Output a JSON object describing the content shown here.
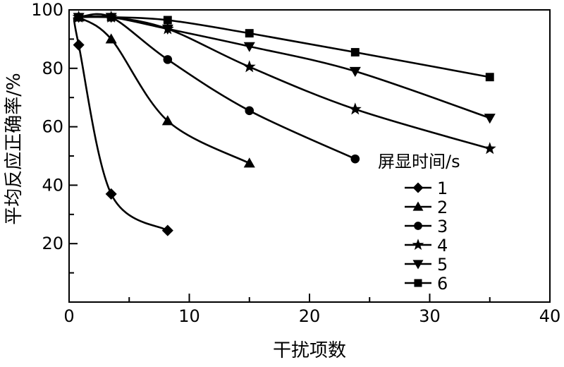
{
  "chart_data": {
    "type": "line",
    "title": "",
    "xlabel": "干扰项数",
    "ylabel": "平均反应正确率/%",
    "xlim": [
      0,
      40
    ],
    "ylim": [
      0,
      100
    ],
    "x_ticks": [
      0,
      10,
      20,
      30,
      40
    ],
    "y_ticks": [
      20,
      40,
      60,
      80,
      100
    ],
    "grid": false,
    "legend": {
      "title": "屏显时间/s",
      "placement": "right-middle"
    },
    "series": [
      {
        "name": "1",
        "marker": "diamond",
        "x": [
          0.8,
          3.5,
          8.2
        ],
        "y": [
          88,
          37,
          24.5
        ],
        "x0": 0.4,
        "y0": 97.5
      },
      {
        "name": "2",
        "marker": "triangle-up",
        "x": [
          0.8,
          3.5,
          8.2,
          15
        ],
        "y": [
          97.5,
          90,
          62,
          47.5
        ]
      },
      {
        "name": "3",
        "marker": "circle",
        "x": [
          0.8,
          3.5,
          8.2,
          15,
          23.8
        ],
        "y": [
          97.5,
          97.5,
          83,
          65.5,
          49
        ]
      },
      {
        "name": "4",
        "marker": "star",
        "x": [
          0.8,
          3.5,
          8.2,
          15,
          23.8,
          35
        ],
        "y": [
          97.5,
          97.5,
          93.5,
          80.5,
          66,
          52.5
        ]
      },
      {
        "name": "5",
        "marker": "triangle-down",
        "x": [
          0.8,
          3.5,
          8.2,
          15,
          23.8,
          35
        ],
        "y": [
          97.5,
          97.5,
          93.5,
          87.5,
          79,
          63
        ]
      },
      {
        "name": "6",
        "marker": "square",
        "x": [
          0.8,
          3.5,
          8.2,
          15,
          23.8,
          35
        ],
        "y": [
          97.5,
          97.5,
          96.5,
          92,
          85.5,
          77
        ]
      }
    ]
  }
}
